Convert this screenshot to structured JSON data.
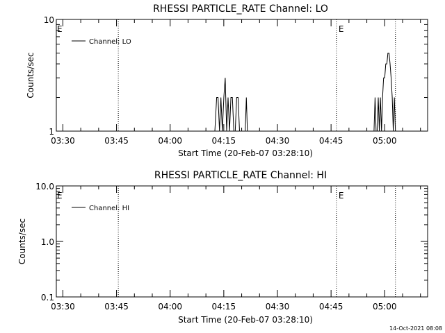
{
  "footer_timestamp": "14-Oct-2021 08:08",
  "chart_data": [
    {
      "type": "line",
      "title": "RHESSI PARTICLE_RATE Channel: LO",
      "xlabel": "Start Time (20-Feb-07 03:28:10)",
      "ylabel": "Counts/sec",
      "yscale": "log",
      "ylim": [
        1,
        10
      ],
      "y_ticks": [
        1,
        10
      ],
      "y_tick_labels": [
        "1",
        "10"
      ],
      "xlim": [
        "03:28:10",
        "05:12:00"
      ],
      "x_tick_labels": [
        "03:30",
        "03:45",
        "04:00",
        "04:15",
        "04:30",
        "04:45",
        "05:00"
      ],
      "x_tick_minutes": [
        210,
        225,
        240,
        255,
        270,
        285,
        300
      ],
      "vertical_markers": [
        {
          "minute": 225.5,
          "label": ""
        },
        {
          "minute": 286.5,
          "label": "E"
        },
        {
          "minute": 303.0,
          "label": ""
        }
      ],
      "left_edge_label": "E",
      "legend": {
        "label": "Channel: LO",
        "position": "top-left"
      },
      "grid": false,
      "series": [
        {
          "name": "Channel: LO",
          "x_minutes": [
            252.5,
            253.0,
            253.4,
            253.8,
            254.2,
            254.6,
            255.0,
            255.4,
            255.8,
            256.2,
            256.6,
            257.0,
            257.4,
            257.8,
            258.2,
            258.6,
            259.0,
            259.4,
            261.0,
            261.3,
            261.6,
            297.0,
            297.3,
            297.6,
            297.9,
            298.2,
            298.5,
            298.8,
            299.1,
            299.4,
            299.7,
            300.0,
            300.3,
            300.6,
            300.9,
            301.2,
            301.5,
            301.8,
            302.1,
            302.4,
            302.7,
            303.0,
            303.3
          ],
          "values": [
            1,
            2,
            2,
            1,
            2,
            1,
            2,
            3,
            1,
            2,
            1,
            2,
            2,
            1,
            1,
            2,
            2,
            1,
            1,
            2,
            1,
            1,
            2,
            1,
            1,
            2,
            1,
            2,
            1,
            2,
            3,
            3,
            4,
            4,
            5,
            5,
            4,
            3,
            2,
            1,
            2,
            1,
            1
          ]
        }
      ]
    },
    {
      "type": "line",
      "title": "RHESSI PARTICLE_RATE Channel: HI",
      "xlabel": "Start Time (20-Feb-07 03:28:10)",
      "ylabel": "Counts/sec",
      "yscale": "log",
      "ylim": [
        0.1,
        10
      ],
      "y_ticks": [
        0.1,
        1,
        10
      ],
      "y_tick_labels": [
        "0.1",
        "1.0",
        "10.0"
      ],
      "xlim": [
        "03:28:10",
        "05:12:00"
      ],
      "x_tick_labels": [
        "03:30",
        "03:45",
        "04:00",
        "04:15",
        "04:30",
        "04:45",
        "05:00"
      ],
      "x_tick_minutes": [
        210,
        225,
        240,
        255,
        270,
        285,
        300
      ],
      "vertical_markers": [
        {
          "minute": 225.5,
          "label": ""
        },
        {
          "minute": 286.5,
          "label": "E"
        },
        {
          "minute": 303.0,
          "label": ""
        }
      ],
      "left_edge_label": "E",
      "legend": {
        "label": "Channel: HI",
        "position": "top-left"
      },
      "grid": false,
      "series": [
        {
          "name": "Channel: HI",
          "x_minutes": [],
          "values": []
        }
      ]
    }
  ]
}
